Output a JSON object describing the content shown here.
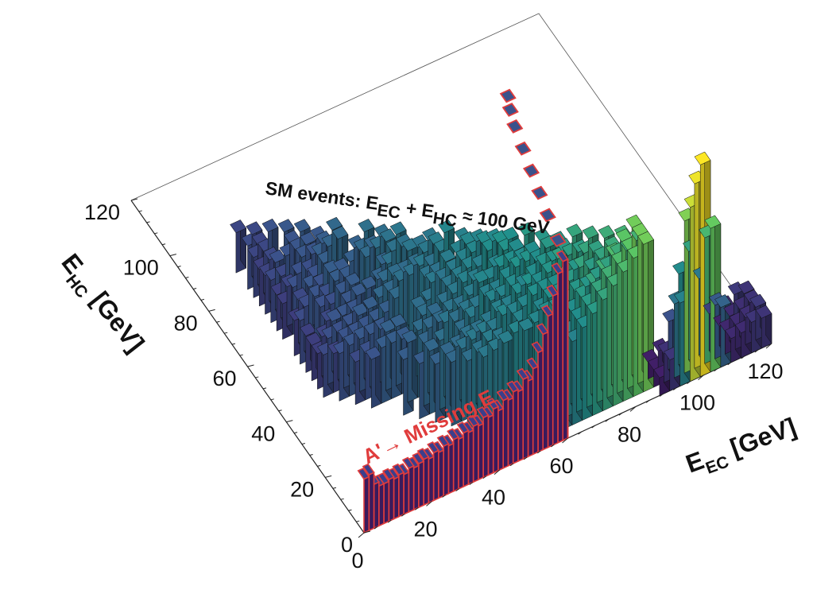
{
  "chart_data": {
    "type": "lego3d",
    "title": "SM events: E_EC + E_HC ≈ 100 GeV",
    "title_parts": [
      "SM events: E",
      "EC",
      " + E",
      "HC",
      " ≈ 100 GeV"
    ],
    "xlabel": "E_EC [GeV]",
    "xlabel_parts": [
      "E",
      "EC",
      " [GeV]"
    ],
    "ylabel": "E_HC [GeV]",
    "ylabel_parts": [
      "E",
      "HC",
      " [GeV]"
    ],
    "xlim": [
      0,
      120
    ],
    "ylim": [
      0,
      120
    ],
    "xticks": [
      "0",
      "20",
      "40",
      "60",
      "80",
      "100",
      "120"
    ],
    "yticks": [
      "0",
      "20",
      "40",
      "60",
      "80",
      "100",
      "120"
    ],
    "colormap": [
      "#440154",
      "#3b528b",
      "#21918c",
      "#5ec962",
      "#fde725"
    ],
    "signal_color": "#e03c3c",
    "signal_annotation": "A'→ Missing E",
    "signal_band": {
      "ehc": 0,
      "eec_range": [
        0,
        60
      ],
      "heights": [
        0.27,
        0.28,
        0.22,
        0.2,
        0.2,
        0.21,
        0.2,
        0.21,
        0.2,
        0.22,
        0.21,
        0.22,
        0.23,
        0.22,
        0.24,
        0.23,
        0.25,
        0.24,
        0.26,
        0.25,
        0.27,
        0.26,
        0.28,
        0.27,
        0.3,
        0.29,
        0.32,
        0.3,
        0.34,
        0.33,
        0.36,
        0.35,
        0.4,
        0.38,
        0.43,
        0.5,
        0.58,
        0.66,
        0.75,
        0.85,
        0.9
      ],
      "edge_steps": [
        [
          60,
          5
        ],
        [
          61,
          12
        ],
        [
          62,
          18
        ],
        [
          63,
          24
        ],
        [
          64,
          30
        ],
        [
          65,
          36
        ],
        [
          66,
          40
        ],
        [
          67,
          43
        ]
      ]
    },
    "background": {
      "ridge_line": "E_HC = 100 - E_EC",
      "spread": 18,
      "peak": {
        "eec": 100,
        "ehc": 2,
        "height": 1.0
      }
    }
  }
}
